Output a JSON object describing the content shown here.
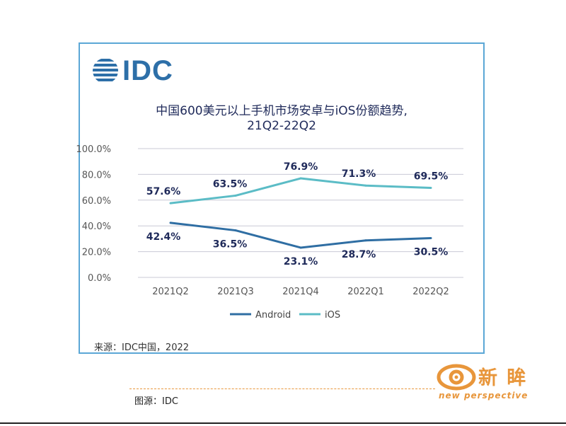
{
  "logo": {
    "text": "IDC"
  },
  "header": {
    "title_line1": "中国600美元以上手机市场安卓与iOS份额趋势,",
    "title_line2": "21Q2-22Q2"
  },
  "chart_data": {
    "type": "line",
    "categories": [
      "2021Q2",
      "2021Q3",
      "2021Q4",
      "2022Q1",
      "2022Q2"
    ],
    "series": [
      {
        "name": "Android",
        "values": [
          42.4,
          36.5,
          23.1,
          28.7,
          30.5
        ],
        "color": "#2f6ea3",
        "labels": [
          "42.4%",
          "36.5%",
          "23.1%",
          "28.7%",
          "30.5%"
        ]
      },
      {
        "name": "iOS",
        "values": [
          57.6,
          63.5,
          76.9,
          71.3,
          69.5
        ],
        "color": "#5bbcc6",
        "labels": [
          "57.6%",
          "63.5%",
          "76.9%",
          "71.3%",
          "69.5%"
        ]
      }
    ],
    "y_ticks": [
      "0.0%",
      "20.0%",
      "40.0%",
      "60.0%",
      "80.0%",
      "100.0%"
    ],
    "ylim": [
      0,
      100
    ],
    "grid": true,
    "legend_position": "bottom"
  },
  "footer": {
    "source": "来源：IDC中国，2022"
  },
  "caption": "图源：IDC",
  "brand": {
    "name_cn": "新 眸",
    "name_en": "new perspective",
    "color": "#e8963b"
  }
}
